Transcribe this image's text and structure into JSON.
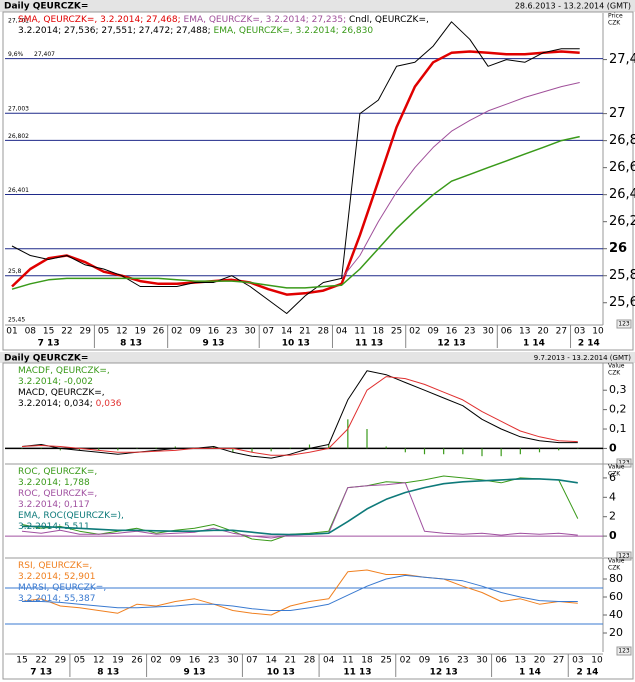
{
  "chart_data": [
    {
      "type": "line",
      "title": "Daily QEURCZK=",
      "subtitle": "28.6.2013 - 13.2.2014 (GMT)",
      "ylabel": [
        "Price",
        "CZK"
      ],
      "corner_label": "123",
      "categories": [
        "01",
        "08",
        "15",
        "22",
        "29",
        "05",
        "12",
        "19",
        "26",
        "02",
        "09",
        "16",
        "23",
        "30",
        "07",
        "14",
        "21",
        "28",
        "04",
        "11",
        "18",
        "25",
        "02",
        "09",
        "16",
        "23",
        "30",
        "06",
        "13",
        "20",
        "27",
        "03",
        "10"
      ],
      "x_groups": [
        {
          "label": "7 13",
          "start": 0
        },
        {
          "label": "8 13",
          "start": 5
        },
        {
          "label": "9 13",
          "start": 9
        },
        {
          "label": "10 13",
          "start": 14
        },
        {
          "label": "11 13",
          "start": 18
        },
        {
          "label": "12 13",
          "start": 22
        },
        {
          "label": "1 14",
          "start": 27
        },
        {
          "label": "2 14",
          "start": 31
        }
      ],
      "ylim": [
        25.45,
        27.73
      ],
      "yticks": [
        {
          "value": 27.4,
          "label": "27,4"
        },
        27,
        {
          "value": 26.8,
          "label": "26,8"
        },
        {
          "value": 26.6,
          "label": "26,6"
        },
        {
          "value": 26.4,
          "label": "26,4"
        },
        {
          "value": 26.2,
          "label": "26,2"
        },
        26,
        {
          "value": 25.8,
          "label": "25,8"
        },
        {
          "value": 25.6,
          "label": "25,6"
        }
      ],
      "levels": [
        {
          "value": 27.407,
          "label": "27,407",
          "note": "9,6%"
        },
        {
          "value": 27.003,
          "label": "27,003"
        },
        {
          "value": 26.802,
          "label": "26,802"
        },
        {
          "value": 26.401,
          "label": "26,401"
        },
        26,
        {
          "value": 25.8,
          "label": "25,8"
        }
      ],
      "level_color": "#1f2a8a",
      "high": {
        "value": 27.701,
        "label": "27,701"
      },
      "low": {
        "value": 25.45,
        "label": "25,45"
      },
      "series": [
        {
          "name": "SMA, QEURCZK=, 3.2.2014; 27,468;",
          "color": "#e00000",
          "width": 2.5,
          "values": [
            25.72,
            25.85,
            25.93,
            25.95,
            25.9,
            25.83,
            25.8,
            25.76,
            25.74,
            25.74,
            25.75,
            25.76,
            25.77,
            25.75,
            25.7,
            25.66,
            25.67,
            25.69,
            25.74,
            26.1,
            26.5,
            26.9,
            27.2,
            27.38,
            27.45,
            27.46,
            27.45,
            27.44,
            27.44,
            27.45,
            27.46,
            27.45,
            null
          ]
        },
        {
          "name": "EMA, QEURCZK=, 3.2.2014; 27,235;",
          "color": "#a0509a",
          "width": 1,
          "values": [
            null,
            null,
            null,
            null,
            null,
            null,
            null,
            null,
            null,
            null,
            null,
            null,
            null,
            null,
            null,
            null,
            null,
            null,
            25.78,
            25.95,
            26.2,
            26.42,
            26.6,
            26.75,
            26.87,
            26.95,
            27.02,
            27.07,
            27.12,
            27.16,
            27.2,
            27.23,
            null
          ]
        },
        {
          "name": "Cndl, QEURCZK=, 3.2.2014; 27,536; 27,551; 27,472; 27,488;",
          "color": "#000000",
          "width": 1,
          "values": [
            26.02,
            25.95,
            25.92,
            25.95,
            25.88,
            25.85,
            25.8,
            25.72,
            25.72,
            25.72,
            25.75,
            25.75,
            25.8,
            25.72,
            25.62,
            25.52,
            25.65,
            25.75,
            25.78,
            27.0,
            27.1,
            27.35,
            27.38,
            27.5,
            27.68,
            27.55,
            27.35,
            27.4,
            27.38,
            27.45,
            27.48,
            27.48,
            null
          ]
        },
        {
          "name": "EMA, QEURCZK=, 3.2.2014; 26,830",
          "color": "#3a9a1a",
          "width": 1.5,
          "values": [
            25.7,
            25.74,
            25.77,
            25.78,
            25.78,
            25.78,
            25.78,
            25.78,
            25.78,
            25.77,
            25.76,
            25.76,
            25.76,
            25.75,
            25.73,
            25.71,
            25.71,
            25.72,
            25.73,
            25.85,
            26.0,
            26.15,
            26.28,
            26.4,
            26.5,
            26.55,
            26.6,
            26.65,
            26.7,
            26.75,
            26.8,
            26.83,
            null
          ]
        }
      ]
    },
    {
      "type": "line",
      "title": "Daily QEURCZK=",
      "subtitle": "9.7.2013 - 13.2.2014 (GMT)",
      "ylabel": [
        "Value",
        "CZK"
      ],
      "corner_label": "123",
      "ylim": [
        -0.07,
        0.43
      ],
      "yticks": [
        {
          "value": 0.3,
          "label": "0,3"
        },
        {
          "value": 0.2,
          "label": "0,2"
        },
        {
          "value": 0.1,
          "label": "0,1"
        },
        0
      ],
      "levels": [
        0
      ],
      "level_color": "#000000",
      "series": [
        {
          "name": "MACDF, QEURCZK=, 3.2.2014; -0,002",
          "color": "#3a9a1a",
          "type": "bar",
          "values": [
            0,
            0.005,
            -0.01,
            -0.01,
            -0.01,
            -0.01,
            0,
            0.005,
            0.01,
            0,
            0.01,
            -0.02,
            -0.02,
            -0.015,
            0.005,
            0.02,
            0.02,
            0.15,
            0.1,
            0.01,
            -0.02,
            -0.03,
            -0.03,
            -0.03,
            -0.04,
            -0.04,
            -0.03,
            -0.02,
            -0.01,
            -0.002,
            null
          ]
        },
        {
          "name": "MACD, QEURCZK=, 3.2.2014; 0,034;",
          "color": "#000000",
          "values": [
            0.01,
            0.02,
            0,
            -0.01,
            -0.02,
            -0.03,
            -0.02,
            -0.01,
            0,
            0,
            0.01,
            -0.02,
            -0.04,
            -0.05,
            -0.03,
            0,
            0.02,
            0.25,
            0.4,
            0.38,
            0.34,
            0.3,
            0.26,
            0.22,
            0.15,
            0.1,
            0.06,
            0.04,
            0.03,
            0.03,
            null
          ]
        },
        {
          "name": "0,036",
          "color": "#e03030",
          "values": [
            0.01,
            0.015,
            0.01,
            0,
            -0.01,
            -0.02,
            -0.02,
            -0.015,
            -0.01,
            0,
            0,
            0,
            -0.02,
            -0.035,
            -0.035,
            -0.02,
            0,
            0.1,
            0.3,
            0.37,
            0.36,
            0.33,
            0.29,
            0.25,
            0.19,
            0.14,
            0.09,
            0.06,
            0.04,
            0.035,
            null
          ]
        }
      ]
    },
    {
      "type": "line",
      "ylabel": [
        "Value",
        "CZK"
      ],
      "corner_label": "123",
      "ylim": [
        -1.95,
        7.23
      ],
      "yticks": [
        6,
        4,
        2,
        0
      ],
      "levels": [
        0
      ],
      "level_color": "#a050a0",
      "series": [
        {
          "name": "ROC, QEURCZK=, 3.2.2014; 1,788",
          "color": "#3a9a1a",
          "values": [
            1.2,
            0.8,
            1.0,
            0.5,
            0.2,
            0.5,
            0.8,
            0.3,
            0.6,
            0.8,
            1.2,
            0.5,
            -0.3,
            -0.5,
            0.2,
            0.3,
            0.5,
            5.0,
            5.2,
            5.6,
            5.5,
            5.8,
            6.2,
            6.0,
            5.8,
            5.5,
            6.0,
            5.9,
            5.8,
            1.8,
            null
          ]
        },
        {
          "name": "ROC, QEURCZK=, 3.2.2014; 0,117",
          "color": "#a050a0",
          "values": [
            0.5,
            0.3,
            0.6,
            0.2,
            0.2,
            0.3,
            0.5,
            0.2,
            0.3,
            0.4,
            0.8,
            0.3,
            0,
            -0.2,
            0.1,
            0.2,
            0.3,
            5.0,
            5.2,
            5.3,
            5.5,
            0.5,
            0.3,
            0.2,
            0.3,
            0.1,
            0.3,
            0.2,
            0.3,
            0.1,
            null
          ]
        },
        {
          "name": "EMA, ROC(QEURCZK=), 3.2.2014; 5,511",
          "color": "#0e7a7a",
          "width": 1.6,
          "values": [
            1.0,
            1.0,
            0.9,
            0.8,
            0.7,
            0.6,
            0.6,
            0.55,
            0.5,
            0.5,
            0.6,
            0.6,
            0.4,
            0.2,
            0.15,
            0.2,
            0.3,
            1.5,
            2.8,
            3.8,
            4.5,
            5.0,
            5.4,
            5.6,
            5.7,
            5.8,
            5.9,
            5.9,
            5.8,
            5.5,
            null
          ]
        }
      ]
    },
    {
      "type": "line",
      "ylabel": [
        "Value",
        "CZK"
      ],
      "corner_label": "123",
      "categories": [
        "15",
        "22",
        "29",
        "05",
        "12",
        "19",
        "26",
        "02",
        "09",
        "16",
        "23",
        "30",
        "07",
        "14",
        "21",
        "28",
        "04",
        "11",
        "18",
        "25",
        "02",
        "09",
        "16",
        "23",
        "30",
        "06",
        "13",
        "20",
        "27",
        "03",
        "10"
      ],
      "x_groups": [
        {
          "label": "7 13",
          "start": 0
        },
        {
          "label": "8 13",
          "start": 3
        },
        {
          "label": "9 13",
          "start": 7
        },
        {
          "label": "10 13",
          "start": 12
        },
        {
          "label": "11 13",
          "start": 16
        },
        {
          "label": "12 13",
          "start": 20
        },
        {
          "label": "1 14",
          "start": 25
        },
        {
          "label": "2 14",
          "start": 29
        }
      ],
      "ylim": [
        1.1,
        101.1
      ],
      "yticks": [
        80,
        60,
        40,
        20
      ],
      "levels": [
        70,
        30
      ],
      "level_color": "#3a7ad0",
      "series": [
        {
          "name": "RSI, QEURCZK=, 3.2.2014; 52,901",
          "color": "#f08020",
          "values": [
            55,
            58,
            50,
            48,
            45,
            42,
            52,
            50,
            55,
            58,
            52,
            45,
            42,
            40,
            50,
            55,
            58,
            88,
            90,
            85,
            85,
            82,
            80,
            72,
            65,
            55,
            58,
            52,
            55,
            53,
            null
          ]
        },
        {
          "name": "MARSI, QEURCZK=, 3.2.2014; 55,387",
          "color": "#3a7ad0",
          "values": [
            55,
            55,
            54,
            52,
            50,
            48,
            48,
            49,
            50,
            52,
            52,
            50,
            47,
            45,
            45,
            48,
            52,
            62,
            72,
            80,
            84,
            82,
            80,
            78,
            72,
            65,
            60,
            56,
            55,
            55,
            null
          ]
        }
      ]
    }
  ]
}
